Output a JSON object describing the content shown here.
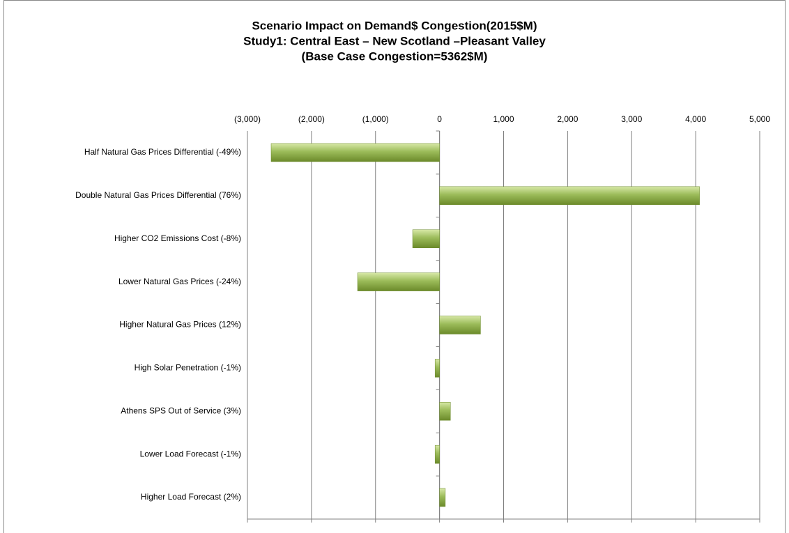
{
  "chart_data": {
    "type": "barh",
    "title": [
      "Scenario Impact on Demand$ Congestion(2015$M)",
      "Study1: Central East – New Scotland –Pleasant Valley",
      "(Base Case Congestion=5362$M)"
    ],
    "categories": [
      "Half Natural Gas Prices Differential (-49%)",
      "Double Natural Gas Prices Differential (76%)",
      "Higher CO2 Emissions Cost (-8%)",
      "Lower Natural Gas Prices (-24%)",
      "Higher Natural Gas Prices (12%)",
      "High Solar Penetration (-1%)",
      "Athens SPS Out of Service (3%)",
      "Lower Load Forecast (-1%)",
      "Higher Load Forecast (2%)"
    ],
    "values": [
      -2630,
      4060,
      -420,
      -1280,
      640,
      -70,
      170,
      -70,
      90
    ],
    "color": "#9bbb59",
    "xlim": [
      -3000,
      5000
    ],
    "xticks": [
      {
        "value": -3000,
        "label": "(3,000)"
      },
      {
        "value": -2000,
        "label": "(2,000)"
      },
      {
        "value": -1000,
        "label": "(1,000)"
      },
      0,
      {
        "value": 1000,
        "label": "1,000"
      },
      {
        "value": 2000,
        "label": "2,000"
      },
      {
        "value": 3000,
        "label": "3,000"
      },
      {
        "value": 4000,
        "label": "4,000"
      },
      {
        "value": 5000,
        "label": "5,000"
      }
    ],
    "negative_tick_color": "#ff0000",
    "grid": true
  }
}
